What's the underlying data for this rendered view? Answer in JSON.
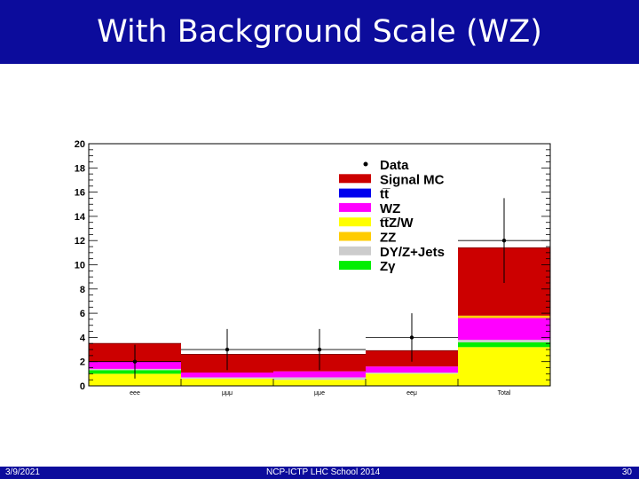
{
  "slide": {
    "title": "With Background Scale (WZ)",
    "footer_date": "3/9/2021",
    "footer_event": "NCP-ICTP LHC School 2014",
    "footer_page": "30"
  },
  "colors": {
    "header_bg": "#0c0c9c",
    "signal_mc": "#cc0000",
    "ttbar": "#0000ee",
    "wz": "#ff00ff",
    "ttzw": "#ffff00",
    "zz": "#ffcc00",
    "dy_z_jets": "#cccccc",
    "z_gamma": "#00ee00"
  },
  "chart_data": {
    "type": "bar",
    "stacked": true,
    "categories": [
      "eee",
      "μμμ",
      "μμe",
      "eeμ",
      "Total"
    ],
    "yticks": [
      "0",
      "2",
      "4",
      "6",
      "8",
      "10",
      "12",
      "14",
      "16",
      "18",
      "20"
    ],
    "ylim": [
      0,
      20
    ],
    "grid": false,
    "legend_position": "top-right",
    "legend": [
      {
        "label": "Data",
        "kind": "marker"
      },
      {
        "label": "Signal MC",
        "kind": "box",
        "color": "#cc0000"
      },
      {
        "label": "tt̅",
        "kind": "box",
        "color": "#0000ee"
      },
      {
        "label": "WZ",
        "kind": "box",
        "color": "#ff00ff"
      },
      {
        "label": "tt̅Z/W",
        "kind": "box",
        "color": "#ffff00"
      },
      {
        "label": "ZZ",
        "kind": "box",
        "color": "#ffcc00"
      },
      {
        "label": "DY/Z+Jets",
        "kind": "box",
        "color": "#cccccc"
      },
      {
        "label": "Zγ",
        "kind": "box",
        "color": "#00ee00"
      }
    ],
    "series": [
      {
        "name": "tt̅Z/W",
        "color": "#ffff00",
        "values": [
          1.0,
          0.6,
          0.5,
          1.0,
          3.2
        ]
      },
      {
        "name": "Zγ",
        "color": "#00ee00",
        "values": [
          0.3,
          0.0,
          0.0,
          0.0,
          0.4
        ]
      },
      {
        "name": "DY/Z+Jets",
        "color": "#cccccc",
        "values": [
          0.1,
          0.1,
          0.2,
          0.1,
          0.2
        ]
      },
      {
        "name": "WZ",
        "color": "#ff00ff",
        "values": [
          0.6,
          0.4,
          0.5,
          0.5,
          1.8
        ]
      },
      {
        "name": "ZZ",
        "color": "#ffcc00",
        "values": [
          0.0,
          0.0,
          0.0,
          0.0,
          0.2
        ]
      },
      {
        "name": "tt̅",
        "color": "#0000ee",
        "values": [
          0.0,
          0.0,
          0.0,
          0.0,
          0.0
        ]
      },
      {
        "name": "Signal MC",
        "color": "#cc0000",
        "values": [
          1.5,
          1.5,
          1.4,
          1.3,
          5.6
        ]
      }
    ],
    "data": {
      "name": "Data",
      "values": [
        2.0,
        3.0,
        3.0,
        4.0,
        12.0
      ],
      "err_low": [
        1.4,
        1.7,
        1.7,
        2.0,
        3.5
      ],
      "err_high": [
        1.4,
        1.7,
        1.7,
        2.0,
        3.5
      ]
    }
  }
}
